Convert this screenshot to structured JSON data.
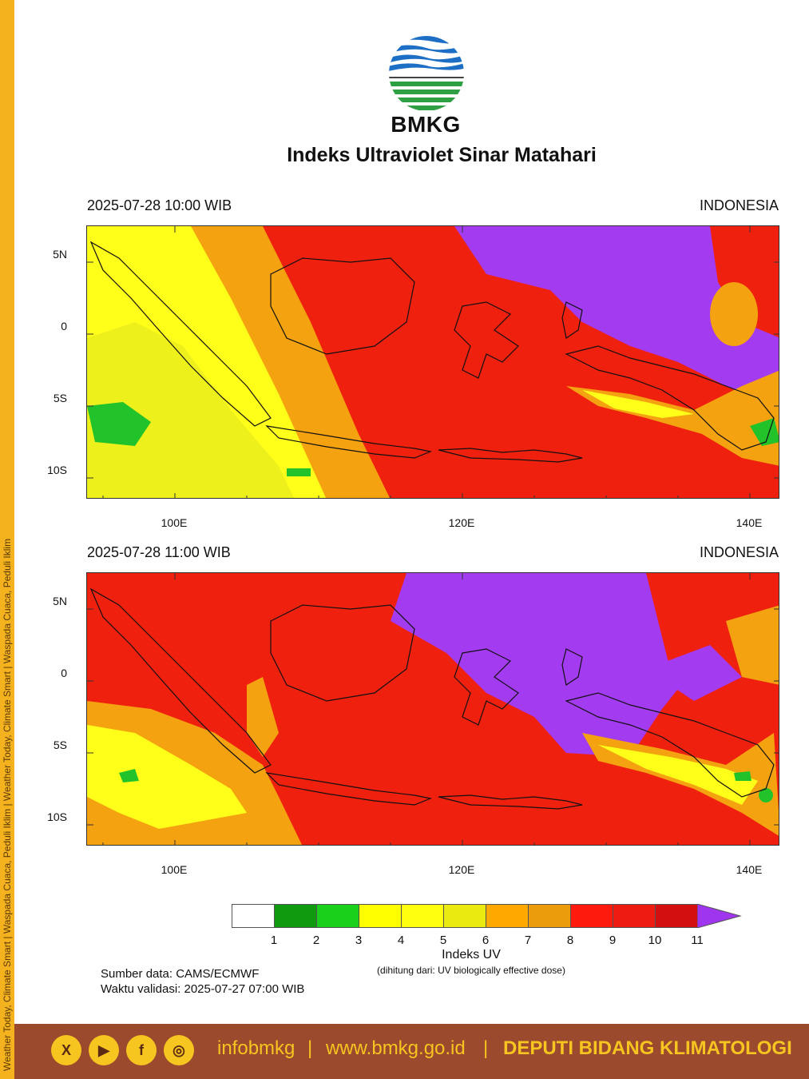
{
  "sidebar_text": "Weather Today, Climate Smart | Waspada Cuaca, Peduli Iklim | Weather Today, Climate Smart | Waspada Cuaca, Peduli Iklim",
  "header": {
    "brand": "BMKG",
    "title": "Indeks Ultraviolet Sinar Matahari"
  },
  "panels": [
    {
      "date_time": "2025-07-28  10:00 WIB",
      "region": "INDONESIA"
    },
    {
      "date_time": "2025-07-28  11:00 WIB",
      "region": "INDONESIA"
    }
  ],
  "axes": {
    "lat_labels": [
      "5N",
      "0",
      "5S",
      "10S"
    ],
    "lon_labels": [
      "100E",
      "120E",
      "140E"
    ]
  },
  "colorbar": {
    "labels": [
      "1",
      "2",
      "3",
      "4",
      "5",
      "6",
      "7",
      "8",
      "9",
      "10",
      "11"
    ],
    "colors": [
      "#ffffff",
      "#0f9a0f",
      "#19d01b",
      "#ffff00",
      "#ffff10",
      "#eaea10",
      "#ffa800",
      "#eb9c0c",
      "#ff1a0e",
      "#ee1c10",
      "#d40f0f",
      "#a035f0"
    ],
    "title": "Indeks UV",
    "subtitle": "(dihitung dari: UV biologically effective dose)"
  },
  "source": {
    "data_source": "Sumber data: CAMS/ECMWF",
    "validation": "Waktu validasi: 2025-07-27 07:00 WIB"
  },
  "footer": {
    "social_icons": [
      "x-icon",
      "youtube-icon",
      "facebook-icon",
      "instagram-icon"
    ],
    "social_glyphs": [
      "X",
      "▶",
      "f",
      "◎"
    ],
    "handle": "infobmkg",
    "website": "www.bmkg.go.id",
    "separator": "|",
    "department": "DEPUTI BIDANG KLIMATOLOGI"
  },
  "map_colors": {
    "yellow": "#ffff1a",
    "lightyellow": "#eef01c",
    "orange": "#f4a20f",
    "red": "#f0200f",
    "darkred": "#d81515",
    "purple": "#a33bf0",
    "green": "#22c32a",
    "coast": "#111111"
  }
}
